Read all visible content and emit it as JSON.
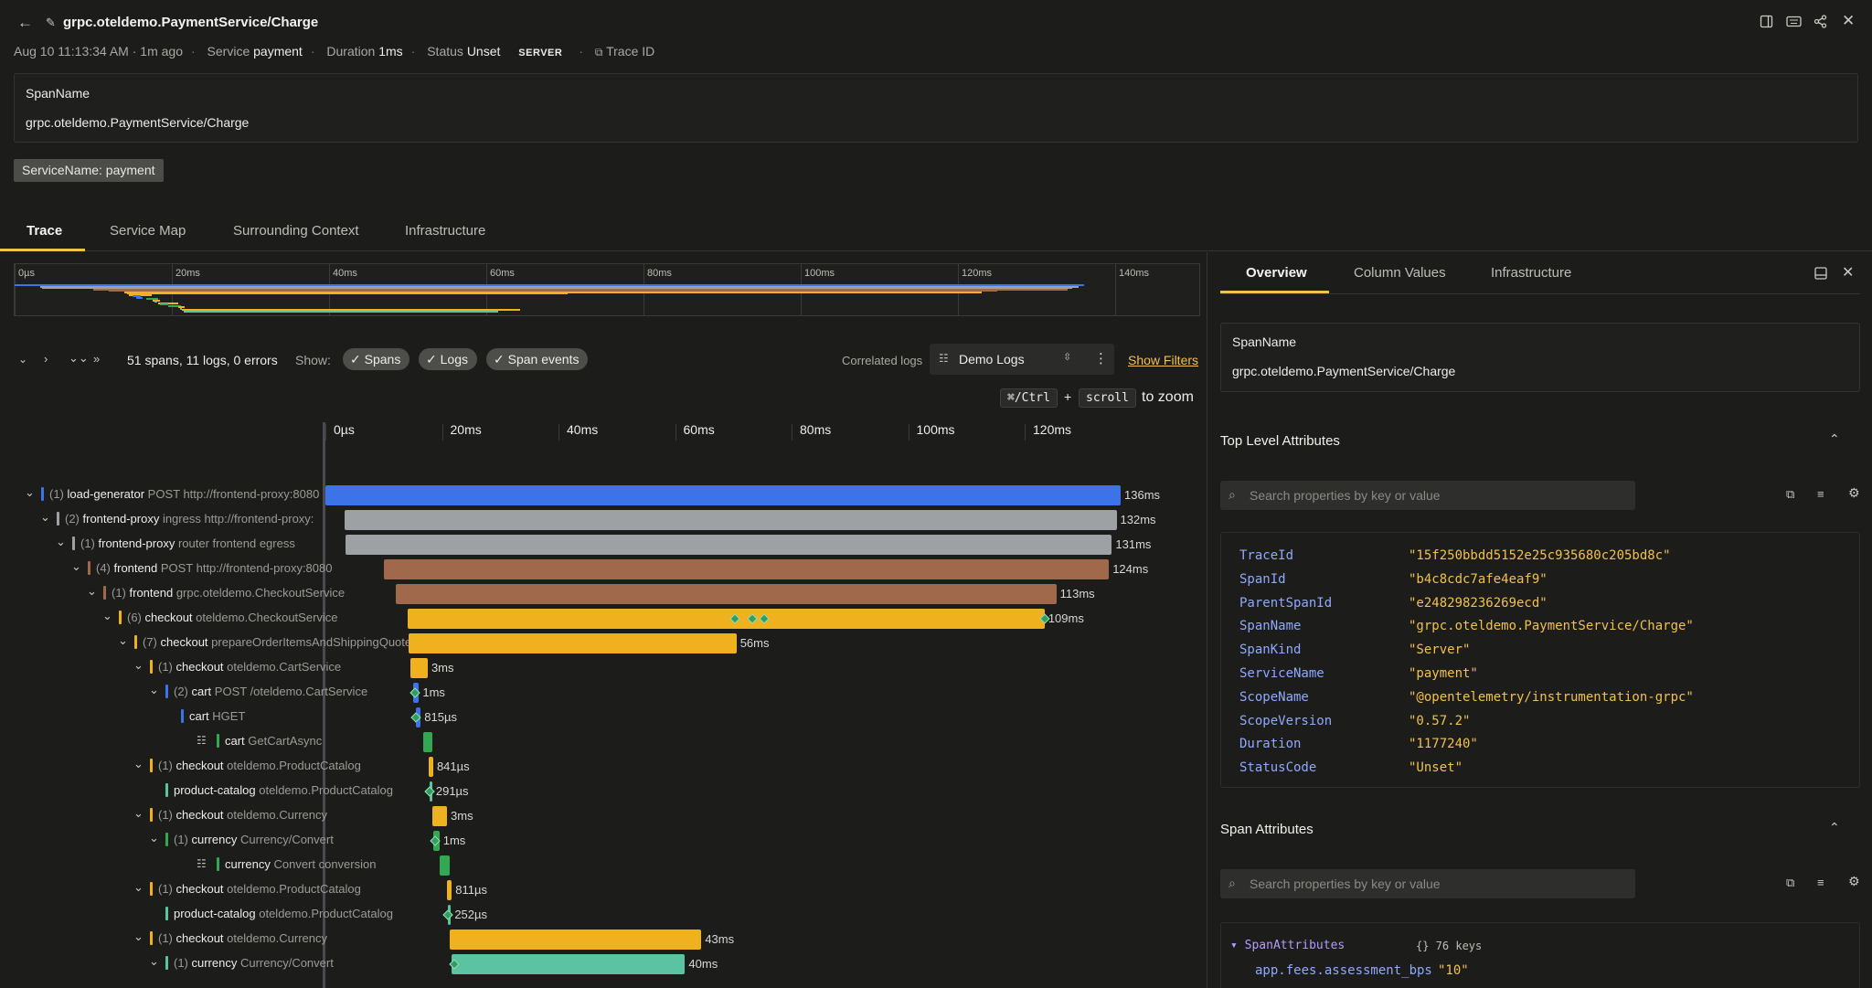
{
  "header": {
    "title": "grpc.oteldemo.PaymentService/Charge"
  },
  "meta": {
    "time": "Aug 10 11:13:34 AM · 1m ago",
    "service_label": "Service",
    "service": "payment",
    "duration_label": "Duration",
    "duration": "1ms",
    "status_label": "Status",
    "status": "Unset",
    "kind": "SERVER",
    "trace_id_label": "Trace ID"
  },
  "span_card": {
    "label": "SpanName",
    "value": "grpc.oteldemo.PaymentService/Charge"
  },
  "service_badge": "ServiceName: payment",
  "tabs": [
    "Trace",
    "Service Map",
    "Surrounding Context",
    "Infrastructure"
  ],
  "minimap": {
    "ticks": [
      "0µs",
      "20ms",
      "40ms",
      "60ms",
      "80ms",
      "100ms",
      "120ms",
      "140ms"
    ]
  },
  "toolbar": {
    "summary": "51 spans, 11 logs, 0 errors",
    "show_label": "Show:",
    "chips": [
      "Spans",
      "Logs",
      "Span events"
    ],
    "correlated_label": "Correlated logs",
    "source": "Demo Logs",
    "show_filters": "Show Filters",
    "zoom_key1": "⌘/Ctrl",
    "zoom_plus": "+",
    "zoom_key2": "scroll",
    "zoom_text": "to zoom"
  },
  "timeline": {
    "ticks": [
      "0µs",
      "20ms",
      "40ms",
      "60ms",
      "80ms",
      "100ms",
      "120ms"
    ]
  },
  "colors": {
    "blue": "#3d73e8",
    "gray": "#9ea1a4",
    "brown": "#a0694c",
    "yellow": "#f0b11e",
    "green": "#33a852",
    "teal": "#5cc3a2",
    "link": "#f2c14b"
  },
  "spans": [
    {
      "depth": 0,
      "count": "(1)",
      "service": "load-generator",
      "op": "POST http://frontend-proxy:8080",
      "color": "#3d73e8",
      "start": 0,
      "dur": 136,
      "label": "136ms",
      "caret": true
    },
    {
      "depth": 1,
      "count": "(2)",
      "service": "frontend-proxy",
      "op": "ingress http://frontend-proxy:",
      "color": "#9ea1a4",
      "start": 3.3,
      "dur": 132,
      "label": "132ms",
      "caret": true
    },
    {
      "depth": 2,
      "count": "(1)",
      "service": "frontend-proxy",
      "op": "router frontend egress",
      "color": "#9ea1a4",
      "start": 3.5,
      "dur": 131,
      "label": "131ms",
      "caret": true
    },
    {
      "depth": 3,
      "count": "(4)",
      "service": "frontend",
      "op": "POST http://frontend-proxy:8080",
      "color": "#a0694c",
      "start": 10,
      "dur": 124,
      "label": "124ms",
      "caret": true
    },
    {
      "depth": 4,
      "count": "(1)",
      "service": "frontend",
      "op": "grpc.oteldemo.CheckoutService",
      "color": "#a0694c",
      "start": 12,
      "dur": 113,
      "label": "113ms",
      "caret": true
    },
    {
      "depth": 5,
      "count": "(6)",
      "service": "checkout",
      "op": "oteldemo.CheckoutService",
      "color": "#f0b11e",
      "start": 14,
      "dur": 109,
      "label": "109ms",
      "caret": true,
      "events": [
        70,
        73,
        75,
        123
      ]
    },
    {
      "depth": 6,
      "count": "(7)",
      "service": "checkout",
      "op": "prepareOrderItemsAndShippingQuote",
      "color": "#f0b11e",
      "start": 14.3,
      "dur": 56,
      "label": "56ms",
      "caret": true
    },
    {
      "depth": 7,
      "count": "(1)",
      "service": "checkout",
      "op": "oteldemo.CartService",
      "color": "#f0b11e",
      "start": 14.5,
      "dur": 3,
      "label": "3ms",
      "caret": true
    },
    {
      "depth": 8,
      "count": "(2)",
      "service": "cart",
      "op": "POST /oteldemo.CartService",
      "color": "#3d73e8",
      "start": 15,
      "dur": 1,
      "label": "1ms",
      "caret": true,
      "events": [
        15.3
      ]
    },
    {
      "depth": 9,
      "count": "",
      "service": "cart",
      "op": "HGET",
      "color": "#3d73e8",
      "start": 15.5,
      "dur": 0.8,
      "label": "815µs",
      "caret": false,
      "events": [
        15.5
      ]
    },
    {
      "depth": 10,
      "count": "",
      "service": "cart",
      "op": "GetCartAsync",
      "color": "#33a852",
      "start": 16.8,
      "dur": 1.5,
      "label": "",
      "caret": false,
      "listicon": true
    },
    {
      "depth": 7,
      "count": "(1)",
      "service": "checkout",
      "op": "oteldemo.ProductCatalog",
      "color": "#f0b11e",
      "start": 17.6,
      "dur": 0.84,
      "label": "841µs",
      "caret": true
    },
    {
      "depth": 8,
      "count": "",
      "service": "product-catalog",
      "op": "oteldemo.ProductCatalog",
      "color": "#5cc3a2",
      "start": 17.8,
      "dur": 0.3,
      "label": "291µs",
      "caret": false,
      "events": [
        17.8
      ]
    },
    {
      "depth": 7,
      "count": "(1)",
      "service": "checkout",
      "op": "oteldemo.Currency",
      "color": "#f0b11e",
      "start": 18.3,
      "dur": 2.5,
      "label": "3ms",
      "caret": true
    },
    {
      "depth": 8,
      "count": "(1)",
      "service": "currency",
      "op": "Currency/Convert",
      "color": "#33a852",
      "start": 18.5,
      "dur": 1,
      "label": "1ms",
      "caret": true,
      "events": [
        18.7
      ]
    },
    {
      "depth": 10,
      "count": "",
      "service": "currency",
      "op": "Convert conversion",
      "color": "#33a852",
      "start": 19.5,
      "dur": 1.7,
      "label": "",
      "caret": false,
      "listicon": true
    },
    {
      "depth": 7,
      "count": "(1)",
      "service": "checkout",
      "op": "oteldemo.ProductCatalog",
      "color": "#f0b11e",
      "start": 20.8,
      "dur": 0.81,
      "label": "811µs",
      "caret": true
    },
    {
      "depth": 8,
      "count": "",
      "service": "product-catalog",
      "op": "oteldemo.ProductCatalog",
      "color": "#5cc3a2",
      "start": 21,
      "dur": 0.25,
      "label": "252µs",
      "caret": false,
      "events": [
        21
      ]
    },
    {
      "depth": 7,
      "count": "(1)",
      "service": "checkout",
      "op": "oteldemo.Currency",
      "color": "#f0b11e",
      "start": 21.3,
      "dur": 43,
      "label": "43ms",
      "caret": true
    },
    {
      "depth": 8,
      "count": "(1)",
      "service": "currency",
      "op": "Currency/Convert",
      "color": "#5cc3a2",
      "start": 21.5,
      "dur": 40,
      "label": "40ms",
      "caret": true,
      "events": [
        22
      ]
    }
  ],
  "right": {
    "tabs": [
      "Overview",
      "Column Values",
      "Infrastructure"
    ],
    "span_card": {
      "label": "SpanName",
      "value": "grpc.oteldemo.PaymentService/Charge"
    },
    "top_title": "Top Level Attributes",
    "search_placeholder": "Search properties by key or value",
    "attributes": [
      {
        "k": "TraceId",
        "v": "\"15f250bbdd5152e25c935680c205bd8c\""
      },
      {
        "k": "SpanId",
        "v": "\"b4c8cdc7afe4eaf9\""
      },
      {
        "k": "ParentSpanId",
        "v": "\"e248298236269ecd\""
      },
      {
        "k": "SpanName",
        "v": "\"grpc.oteldemo.PaymentService/Charge\""
      },
      {
        "k": "SpanKind",
        "v": "\"Server\""
      },
      {
        "k": "ServiceName",
        "v": "\"payment\""
      },
      {
        "k": "ScopeName",
        "v": "\"@opentelemetry/instrumentation-grpc\""
      },
      {
        "k": "ScopeVersion",
        "v": "\"0.57.2\""
      },
      {
        "k": "Duration",
        "v": "\"1177240\""
      },
      {
        "k": "StatusCode",
        "v": "\"Unset\""
      }
    ],
    "span_attr_title": "Span Attributes",
    "span_attr_root": "SpanAttributes",
    "span_attr_count": "{} 76 keys",
    "span_attr_first": {
      "k": "app.fees.assessment_bps",
      "v": "\"10\""
    }
  }
}
